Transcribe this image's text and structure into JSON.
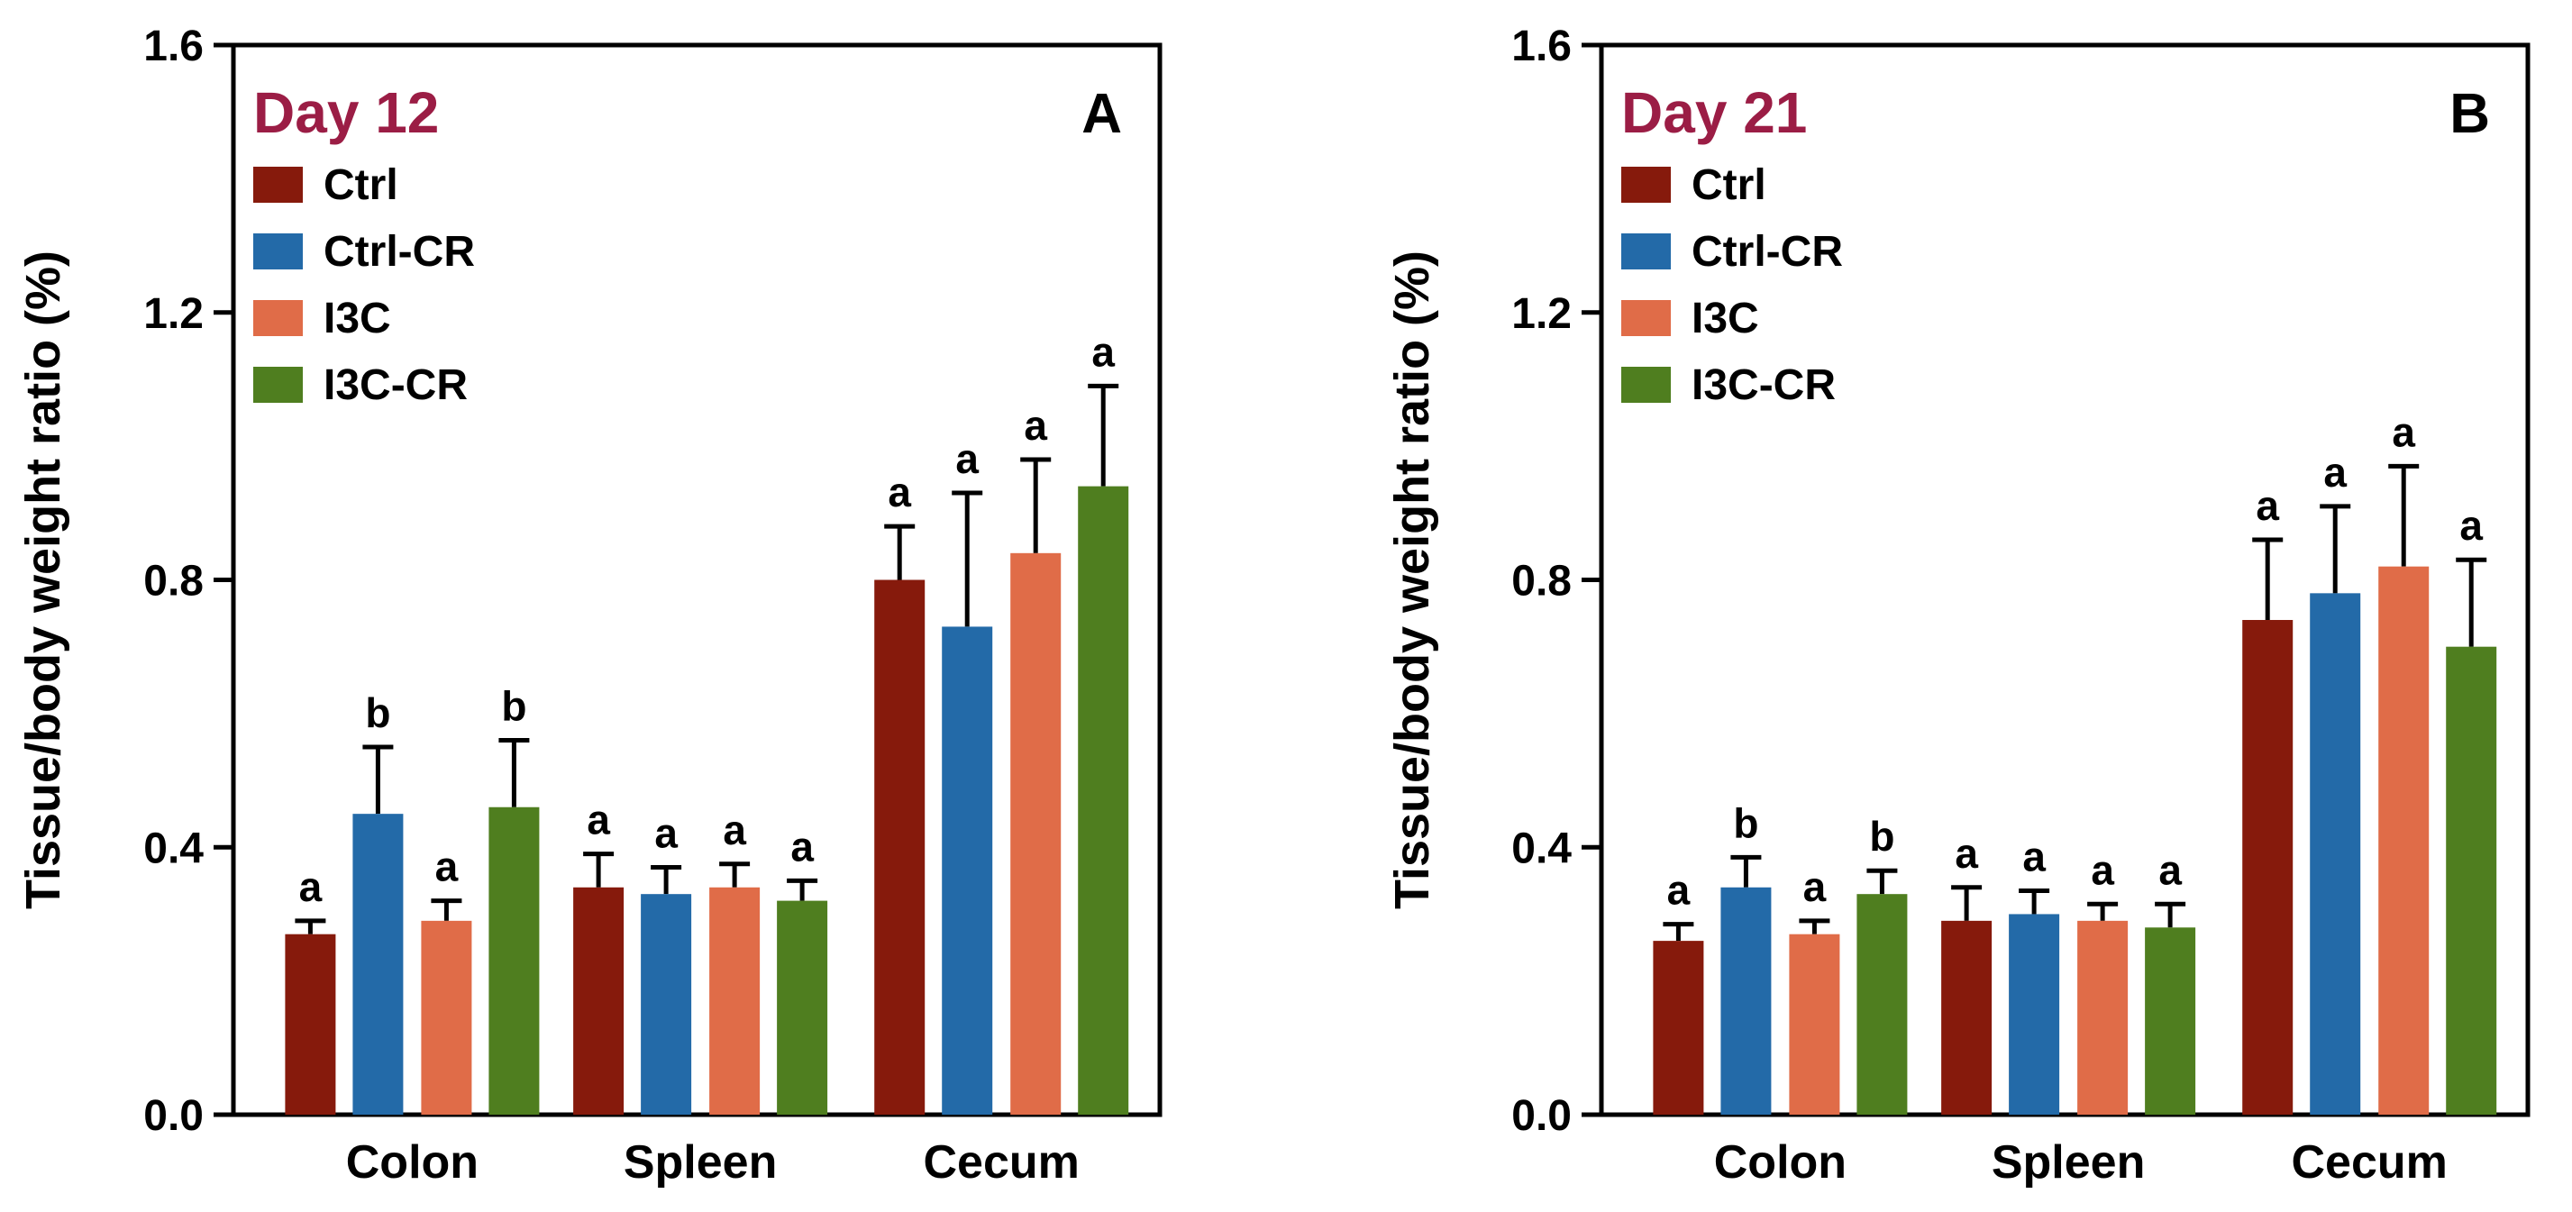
{
  "figure": {
    "colors": {
      "Ctrl": "#861a0c",
      "Ctrl-CR": "#236aa8",
      "I3C": "#e06c48",
      "I3C-CR": "#4f7e1f",
      "title": "#9b1d45"
    }
  },
  "chart_data": [
    {
      "type": "bar",
      "panel": "A",
      "title": "Day 12",
      "ylabel": "Tissue/body weight ratio (%)",
      "xlabel": "",
      "ylim": [
        0,
        1.6
      ],
      "yticks": [
        "0.0",
        "0.4",
        "0.8",
        "1.2",
        "1.6"
      ],
      "categories": [
        "Colon",
        "Spleen",
        "Cecum"
      ],
      "legend_position": "top-left",
      "series": [
        {
          "name": "Ctrl",
          "values": [
            0.27,
            0.34,
            0.8
          ],
          "errors": [
            0.02,
            0.05,
            0.08
          ],
          "labels": [
            "a",
            "a",
            "a"
          ]
        },
        {
          "name": "Ctrl-CR",
          "values": [
            0.45,
            0.33,
            0.73
          ],
          "errors": [
            0.1,
            0.04,
            0.2
          ],
          "labels": [
            "b",
            "a",
            "a"
          ]
        },
        {
          "name": "I3C",
          "values": [
            0.29,
            0.34,
            0.84
          ],
          "errors": [
            0.03,
            0.035,
            0.14
          ],
          "labels": [
            "a",
            "a",
            "a"
          ]
        },
        {
          "name": "I3C-CR",
          "values": [
            0.46,
            0.32,
            0.94
          ],
          "errors": [
            0.1,
            0.03,
            0.15
          ],
          "labels": [
            "b",
            "a",
            "a"
          ]
        }
      ]
    },
    {
      "type": "bar",
      "panel": "B",
      "title": "Day 21",
      "ylabel": "Tissue/body weight ratio (%)",
      "xlabel": "",
      "ylim": [
        0,
        1.6
      ],
      "yticks": [
        "0.0",
        "0.4",
        "0.8",
        "1.2",
        "1.6"
      ],
      "categories": [
        "Colon",
        "Spleen",
        "Cecum"
      ],
      "legend_position": "top-left",
      "series": [
        {
          "name": "Ctrl",
          "values": [
            0.26,
            0.29,
            0.74
          ],
          "errors": [
            0.025,
            0.05,
            0.12
          ],
          "labels": [
            "a",
            "a",
            "a"
          ]
        },
        {
          "name": "Ctrl-CR",
          "values": [
            0.34,
            0.3,
            0.78
          ],
          "errors": [
            0.045,
            0.035,
            0.13
          ],
          "labels": [
            "b",
            "a",
            "a"
          ]
        },
        {
          "name": "I3C",
          "values": [
            0.27,
            0.29,
            0.82
          ],
          "errors": [
            0.02,
            0.025,
            0.15
          ],
          "labels": [
            "a",
            "a",
            "a"
          ]
        },
        {
          "name": "I3C-CR",
          "values": [
            0.33,
            0.28,
            0.7
          ],
          "errors": [
            0.035,
            0.035,
            0.13
          ],
          "labels": [
            "b",
            "a",
            "a"
          ]
        }
      ]
    }
  ]
}
